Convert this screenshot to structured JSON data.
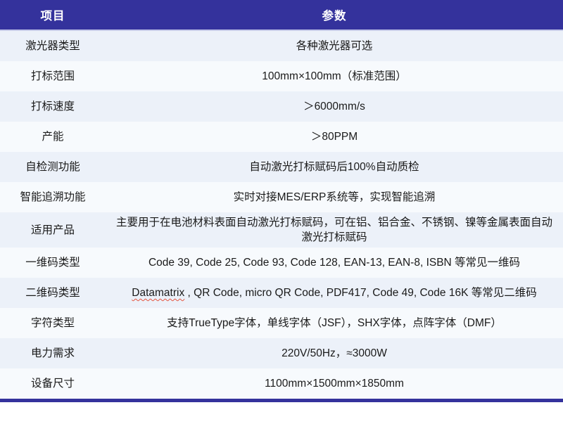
{
  "accent_color": "#34329c",
  "row_band_colors": {
    "odd": "#ecf1f9",
    "even": "#f7fafd"
  },
  "table": {
    "headers": [
      {
        "label": "项目"
      },
      {
        "label": "参数"
      }
    ],
    "rows": [
      {
        "label": "激光器类型",
        "value": "各种激光器可选"
      },
      {
        "label": "打标范围",
        "value": "100mm×100mm（标准范围）"
      },
      {
        "label": "打标速度",
        "value": "＞6000mm/s"
      },
      {
        "label": "产能",
        "value": "＞80PPM"
      },
      {
        "label": "自检测功能",
        "value": "自动激光打标赋码后100%自动质检"
      },
      {
        "label": "智能追溯功能",
        "value": "实时对接MES/ERP系统等，实现智能追溯"
      },
      {
        "label": "适用产品",
        "value": "主要用于在电池材料表面自动激光打标赋码，可在铝、铝合金、不锈钢、镍等金属表面自动激光打标赋码"
      },
      {
        "label": "一维码类型",
        "value": "Code 39, Code 25, Code 93,  Code 128, EAN-13, EAN-8, ISBN 等常见一维码"
      },
      {
        "label": "二维码类型",
        "value": "Datamatrix , QR Code, micro QR Code, PDF417,  Code 49, Code 16K 等常见二维码",
        "misspelled_word": "Datamatrix"
      },
      {
        "label": "字符类型",
        "value": "支持TrueType字体，单线字体（JSF），SHX字体，点阵字体（DMF）"
      },
      {
        "label": "电力需求",
        "value": "220V/50Hz，≈3000W"
      },
      {
        "label": "设备尺寸",
        "value": "1100mm×1500mm×1850mm"
      }
    ]
  }
}
